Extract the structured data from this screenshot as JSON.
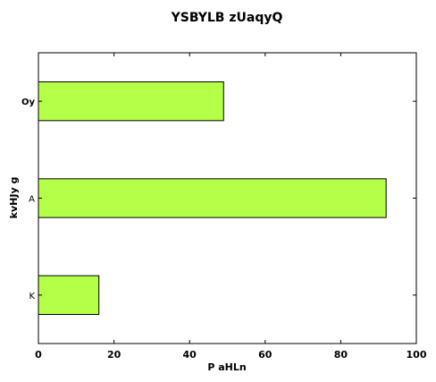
{
  "chart_data": {
    "type": "bar",
    "orientation": "horizontal",
    "title": "YSBYLB zUaqyQ",
    "xlabel": "P   aHLn",
    "ylabel": "kvHJy g",
    "categories": [
      "K",
      "A",
      "Oy"
    ],
    "values": [
      16,
      92,
      49
    ],
    "xlim": [
      0,
      100
    ],
    "xticks": [
      0,
      20,
      40,
      60,
      80,
      100
    ],
    "bar_color": "#b4ff48",
    "grid": false,
    "legend": "none"
  }
}
